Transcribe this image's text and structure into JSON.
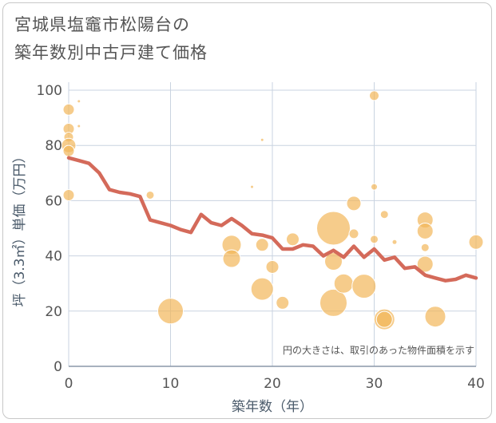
{
  "title": {
    "line1": "宮城県塩竈市松陽台の",
    "line2": "築年数別中古戸建て価格"
  },
  "note": "円の大きさは、取引のあった物件面積を示す",
  "colors": {
    "line": "#d46a5a",
    "bubble": "#f2b65a",
    "grid": "#c9d3e0",
    "plot_bg": "#ffffff"
  },
  "chart_data": {
    "type": "scatter",
    "xlabel": "築年数（年）",
    "ylabel": "坪（3.3㎡）単価（万円）",
    "xlim": [
      0,
      40
    ],
    "ylim": [
      0,
      100
    ],
    "x_ticks": [
      0,
      10,
      20,
      30,
      40
    ],
    "y_ticks": [
      0,
      20,
      40,
      60,
      80,
      100
    ],
    "grid": true,
    "bubbles": [
      {
        "x": 0,
        "y": 93,
        "size": 7
      },
      {
        "x": 0,
        "y": 86,
        "size": 7
      },
      {
        "x": 0,
        "y": 83,
        "size": 6
      },
      {
        "x": 0,
        "y": 80,
        "size": 9
      },
      {
        "x": 0,
        "y": 78,
        "size": 7
      },
      {
        "x": 0,
        "y": 62,
        "size": 7
      },
      {
        "x": 1,
        "y": 96,
        "size": 2
      },
      {
        "x": 1,
        "y": 87,
        "size": 2
      },
      {
        "x": 8,
        "y": 62,
        "size": 5
      },
      {
        "x": 10,
        "y": 20,
        "size": 16
      },
      {
        "x": 16,
        "y": 44,
        "size": 12
      },
      {
        "x": 16,
        "y": 39,
        "size": 11
      },
      {
        "x": 18,
        "y": 65,
        "size": 2
      },
      {
        "x": 19,
        "y": 82,
        "size": 2
      },
      {
        "x": 19,
        "y": 44,
        "size": 8
      },
      {
        "x": 19,
        "y": 28,
        "size": 14
      },
      {
        "x": 20,
        "y": 36,
        "size": 8
      },
      {
        "x": 21,
        "y": 23,
        "size": 8
      },
      {
        "x": 22,
        "y": 46,
        "size": 8
      },
      {
        "x": 26,
        "y": 50,
        "size": 21
      },
      {
        "x": 26,
        "y": 38,
        "size": 11
      },
      {
        "x": 26,
        "y": 23,
        "size": 17
      },
      {
        "x": 27,
        "y": 30,
        "size": 12
      },
      {
        "x": 28,
        "y": 59,
        "size": 9
      },
      {
        "x": 28,
        "y": 48,
        "size": 6
      },
      {
        "x": 29,
        "y": 29,
        "size": 15
      },
      {
        "x": 30,
        "y": 98,
        "size": 6
      },
      {
        "x": 30,
        "y": 65,
        "size": 4
      },
      {
        "x": 30,
        "y": 46,
        "size": 5
      },
      {
        "x": 31,
        "y": 55,
        "size": 5
      },
      {
        "x": 31,
        "y": 17,
        "size": 13
      },
      {
        "x": 31,
        "y": 17,
        "size": 10
      },
      {
        "x": 32,
        "y": 45,
        "size": 3
      },
      {
        "x": 35,
        "y": 53,
        "size": 10
      },
      {
        "x": 35,
        "y": 49,
        "size": 10
      },
      {
        "x": 35,
        "y": 43,
        "size": 5
      },
      {
        "x": 35,
        "y": 37,
        "size": 10
      },
      {
        "x": 36,
        "y": 18,
        "size": 13
      },
      {
        "x": 40,
        "y": 45,
        "size": 9
      }
    ],
    "trend_line": {
      "x": [
        0,
        1,
        2,
        3,
        4,
        5,
        6,
        7,
        8,
        9,
        10,
        11,
        12,
        13,
        14,
        15,
        16,
        17,
        18,
        19,
        20,
        21,
        22,
        23,
        24,
        25,
        26,
        27,
        28,
        29,
        30,
        31,
        32,
        33,
        34,
        35,
        36,
        37,
        38,
        39,
        40
      ],
      "y": [
        75.5,
        74.5,
        73.5,
        70,
        64,
        63,
        62.5,
        61.5,
        53,
        52,
        51,
        49.5,
        48.5,
        55,
        52,
        51,
        53.5,
        51,
        48,
        47.5,
        46.5,
        42.5,
        42.5,
        44,
        43.5,
        40,
        42,
        39.5,
        43.5,
        39.5,
        42.5,
        38.5,
        39.5,
        35.5,
        36,
        33,
        32,
        31,
        31.5,
        33,
        32
      ]
    }
  }
}
